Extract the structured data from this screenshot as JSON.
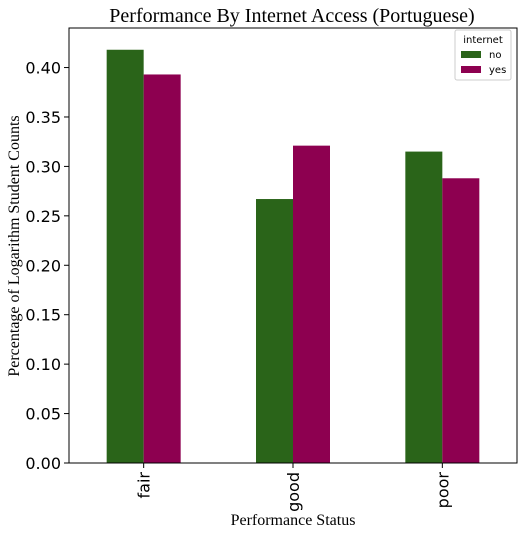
{
  "chart_data": {
    "type": "bar",
    "title": "Performance By Internet Access (Portuguese)",
    "xlabel": "Performance Status",
    "ylabel": "Percentage of Logarithm Student Counts",
    "categories": [
      "fair",
      "good",
      "poor"
    ],
    "series": [
      {
        "name": "no",
        "values": [
          0.418,
          0.267,
          0.315
        ],
        "color": "#2a6419"
      },
      {
        "name": "yes",
        "values": [
          0.393,
          0.321,
          0.288
        ],
        "color": "#8d0050"
      }
    ],
    "ylim": [
      0,
      0.44
    ],
    "yticks": [
      "0.00",
      "0.05",
      "0.10",
      "0.15",
      "0.20",
      "0.25",
      "0.30",
      "0.35",
      "0.40"
    ],
    "legend": {
      "title": "internet",
      "placement": "top-right"
    },
    "grid": false
  }
}
